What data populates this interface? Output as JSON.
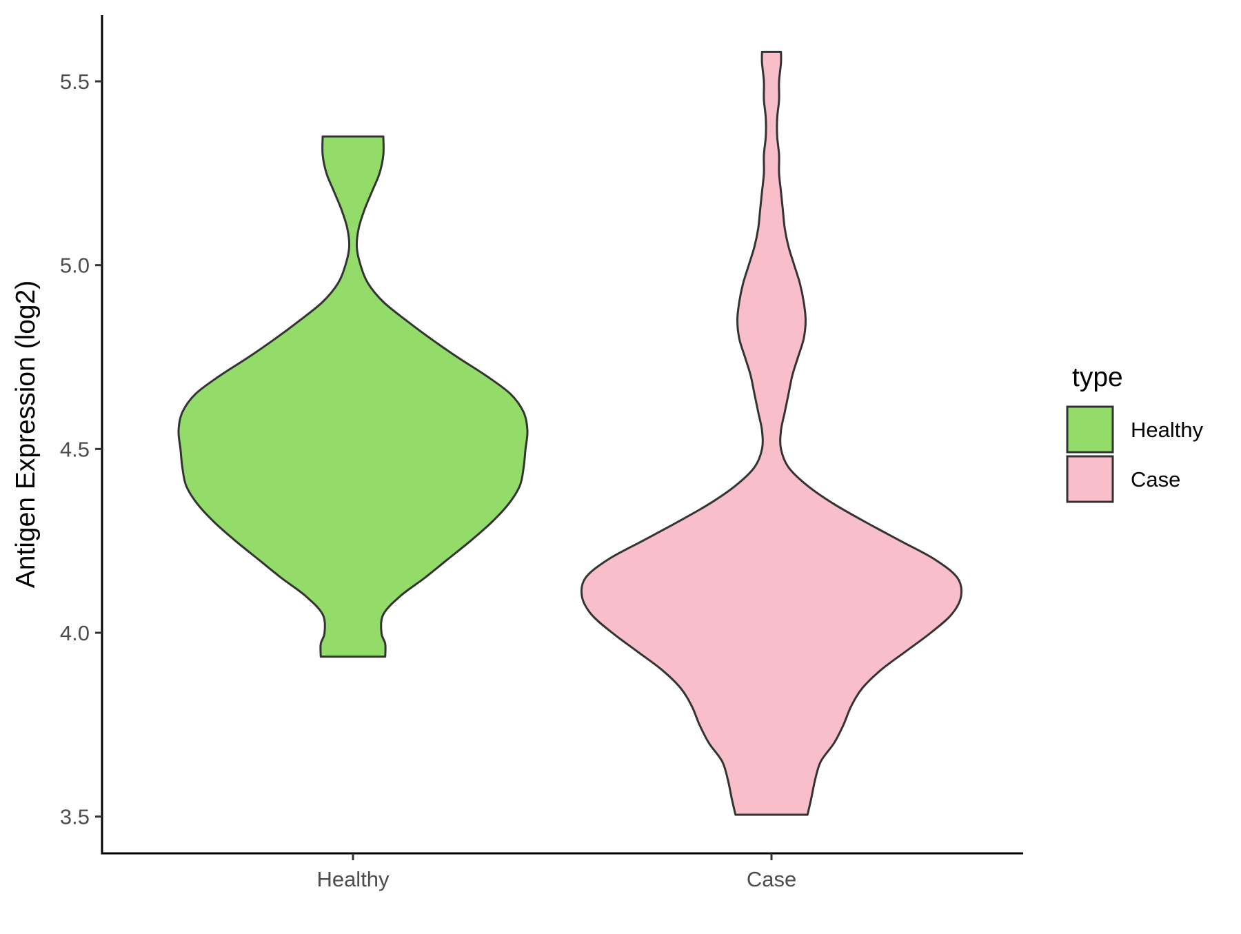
{
  "chart_data": {
    "type": "violin",
    "title": "",
    "xlabel": "",
    "ylabel": "Antigen Expression (log2)",
    "ylim": [
      3.4,
      5.68
    ],
    "yticks": [
      "3.5",
      "4.0",
      "4.5",
      "5.0",
      "5.5"
    ],
    "categories": [
      "Healthy",
      "Case"
    ],
    "grid": false,
    "legend": {
      "title": "type",
      "placement": "right",
      "entries": [
        {
          "label": "Healthy",
          "color": "#93dc6a"
        },
        {
          "label": "Case",
          "color": "#f8bfcb"
        }
      ]
    },
    "series": [
      {
        "category": "Healthy",
        "color": "#93dc6a",
        "y_min": 3.935,
        "y_max": 5.35,
        "density_profile": [
          [
            3.935,
            0.17
          ],
          [
            3.97,
            0.17
          ],
          [
            4.0,
            0.15
          ],
          [
            4.05,
            0.16
          ],
          [
            4.1,
            0.25
          ],
          [
            4.15,
            0.38
          ],
          [
            4.2,
            0.5
          ],
          [
            4.25,
            0.62
          ],
          [
            4.3,
            0.73
          ],
          [
            4.35,
            0.82
          ],
          [
            4.4,
            0.88
          ],
          [
            4.45,
            0.9
          ],
          [
            4.5,
            0.91
          ],
          [
            4.55,
            0.92
          ],
          [
            4.6,
            0.9
          ],
          [
            4.65,
            0.83
          ],
          [
            4.7,
            0.7
          ],
          [
            4.75,
            0.55
          ],
          [
            4.8,
            0.41
          ],
          [
            4.85,
            0.28
          ],
          [
            4.9,
            0.16
          ],
          [
            4.95,
            0.08
          ],
          [
            5.0,
            0.04
          ],
          [
            5.05,
            0.02
          ],
          [
            5.1,
            0.03
          ],
          [
            5.15,
            0.06
          ],
          [
            5.2,
            0.1
          ],
          [
            5.25,
            0.14
          ],
          [
            5.3,
            0.16
          ],
          [
            5.35,
            0.16
          ]
        ]
      },
      {
        "category": "Case",
        "color": "#f8bfcb",
        "y_min": 3.505,
        "y_max": 5.58,
        "density_profile": [
          [
            3.505,
            0.19
          ],
          [
            3.55,
            0.21
          ],
          [
            3.6,
            0.23
          ],
          [
            3.65,
            0.26
          ],
          [
            3.7,
            0.33
          ],
          [
            3.75,
            0.38
          ],
          [
            3.8,
            0.42
          ],
          [
            3.85,
            0.48
          ],
          [
            3.9,
            0.58
          ],
          [
            3.95,
            0.71
          ],
          [
            4.0,
            0.84
          ],
          [
            4.05,
            0.95
          ],
          [
            4.1,
            1.0
          ],
          [
            4.15,
            0.98
          ],
          [
            4.2,
            0.86
          ],
          [
            4.25,
            0.68
          ],
          [
            4.3,
            0.5
          ],
          [
            4.35,
            0.33
          ],
          [
            4.4,
            0.19
          ],
          [
            4.45,
            0.09
          ],
          [
            4.5,
            0.05
          ],
          [
            4.55,
            0.05
          ],
          [
            4.6,
            0.07
          ],
          [
            4.65,
            0.09
          ],
          [
            4.7,
            0.11
          ],
          [
            4.75,
            0.14
          ],
          [
            4.8,
            0.17
          ],
          [
            4.85,
            0.18
          ],
          [
            4.9,
            0.17
          ],
          [
            4.95,
            0.15
          ],
          [
            5.0,
            0.12
          ],
          [
            5.05,
            0.09
          ],
          [
            5.1,
            0.07
          ],
          [
            5.15,
            0.06
          ],
          [
            5.2,
            0.05
          ],
          [
            5.25,
            0.04
          ],
          [
            5.3,
            0.04
          ],
          [
            5.35,
            0.03
          ],
          [
            5.4,
            0.03
          ],
          [
            5.45,
            0.04
          ],
          [
            5.5,
            0.04
          ],
          [
            5.55,
            0.05
          ],
          [
            5.58,
            0.05
          ]
        ]
      }
    ]
  }
}
